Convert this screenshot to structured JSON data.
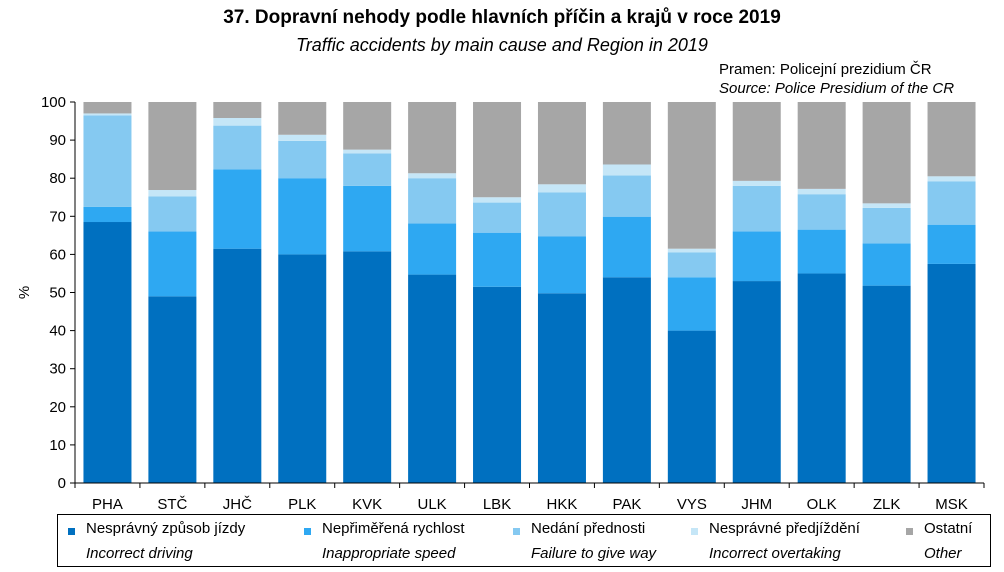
{
  "header": {
    "title": "37. Dopravní nehody podle hlavních příčin a krajů v roce 2019",
    "subtitle": "Traffic accidents by main cause and Region in 2019",
    "source_cz": "Pramen: Policejní prezidium ČR",
    "source_en": "Source: Police Presidium of the CR"
  },
  "chart_data": {
    "type": "bar",
    "stacked": true,
    "title": "37. Dopravní nehody podle hlavních příčin a krajů v roce 2019",
    "subtitle": "Traffic accidents by main cause and Region in 2019",
    "xlabel": "",
    "ylabel": "%",
    "ylim": [
      0,
      100
    ],
    "yticks": [
      0,
      10,
      20,
      30,
      40,
      50,
      60,
      70,
      80,
      90,
      100
    ],
    "grid": false,
    "legend_position": "bottom",
    "categories": [
      "PHA",
      "STČ",
      "JHČ",
      "PLK",
      "KVK",
      "ULK",
      "LBK",
      "HKK",
      "PAK",
      "VYS",
      "JHM",
      "OLK",
      "ZLK",
      "MSK"
    ],
    "series": [
      {
        "name": "Nesprávný způsob jízdy",
        "name_en": "Incorrect driving",
        "color": "#0070C0",
        "values": [
          68.5,
          49,
          61.5,
          60,
          60.8,
          54.7,
          51.5,
          49.8,
          54,
          40,
          53,
          55,
          51.8,
          57.5
        ]
      },
      {
        "name": "Nepřiměřená rychlost",
        "name_en": "Inappropriate speed",
        "color": "#2EA8F2",
        "values": [
          4,
          17,
          20.8,
          20,
          17.2,
          13.4,
          14.2,
          14.9,
          15.9,
          14,
          13,
          11.5,
          11.1,
          10.3
        ]
      },
      {
        "name": "Nedání přednosti",
        "name_en": "Failure to give way",
        "color": "#85C9F1",
        "values": [
          24,
          9.2,
          11.5,
          9.8,
          8.5,
          11.9,
          7.9,
          11.6,
          10.8,
          6.5,
          12,
          9.3,
          9.3,
          11.4
        ]
      },
      {
        "name": "Nesprávné předjíždění",
        "name_en": "Incorrect overtaking",
        "color": "#C5E6F7",
        "values": [
          0.5,
          1.7,
          2,
          1.6,
          1,
          1.3,
          1.4,
          2.1,
          2.9,
          1,
          1.3,
          1.4,
          1.2,
          1.3
        ]
      },
      {
        "name": "Ostatní",
        "name_en": "Other",
        "color": "#A6A6A6",
        "values": [
          3,
          23.1,
          4.2,
          8.6,
          12.5,
          18.7,
          25,
          21.6,
          16.4,
          38.5,
          20.7,
          22.8,
          26.6,
          19.5
        ]
      }
    ]
  }
}
